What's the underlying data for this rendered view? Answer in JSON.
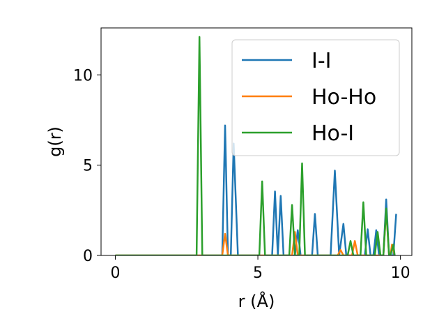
{
  "chart_data": {
    "type": "line",
    "xlabel": "r (Å)",
    "ylabel": "g(r)",
    "xlim": [
      -0.5,
      10.4
    ],
    "ylim": [
      0,
      12.6
    ],
    "xticks": [
      0,
      5,
      10
    ],
    "yticks": [
      0,
      5,
      10
    ],
    "grid": false,
    "legend_position": "top-right",
    "series": [
      {
        "name": "I-I",
        "color": "#1f77b4",
        "points": [
          [
            0,
            0
          ],
          [
            3.0,
            0
          ],
          [
            3.75,
            0
          ],
          [
            3.85,
            7.2
          ],
          [
            3.95,
            0
          ],
          [
            4.05,
            0
          ],
          [
            4.15,
            6.2
          ],
          [
            4.3,
            0
          ],
          [
            5.5,
            0
          ],
          [
            5.6,
            3.55
          ],
          [
            5.7,
            0
          ],
          [
            5.8,
            3.3
          ],
          [
            5.9,
            0
          ],
          [
            6.3,
            0
          ],
          [
            6.4,
            1.4
          ],
          [
            6.5,
            0
          ],
          [
            6.9,
            0
          ],
          [
            7.0,
            2.3
          ],
          [
            7.1,
            0
          ],
          [
            7.55,
            0
          ],
          [
            7.7,
            4.7
          ],
          [
            7.85,
            0
          ],
          [
            8.0,
            1.75
          ],
          [
            8.1,
            0
          ],
          [
            8.75,
            0
          ],
          [
            8.85,
            1.45
          ],
          [
            8.95,
            0
          ],
          [
            9.05,
            0
          ],
          [
            9.15,
            1.4
          ],
          [
            9.25,
            0
          ],
          [
            9.4,
            0
          ],
          [
            9.5,
            3.1
          ],
          [
            9.6,
            0
          ],
          [
            9.75,
            0
          ],
          [
            9.85,
            2.3
          ]
        ]
      },
      {
        "name": "Ho-Ho",
        "color": "#ff7f0e",
        "points": [
          [
            0,
            0
          ],
          [
            3.75,
            0
          ],
          [
            3.85,
            1.2
          ],
          [
            3.95,
            0
          ],
          [
            6.2,
            0
          ],
          [
            6.3,
            1.3
          ],
          [
            6.4,
            0
          ],
          [
            7.8,
            0
          ],
          [
            7.9,
            0.3
          ],
          [
            8.0,
            0
          ],
          [
            8.3,
            0
          ],
          [
            8.4,
            0.8
          ],
          [
            8.5,
            0
          ],
          [
            9.4,
            0
          ],
          [
            9.5,
            2.5
          ],
          [
            9.6,
            0
          ],
          [
            9.65,
            0
          ],
          [
            9.7,
            0.6
          ],
          [
            9.8,
            0
          ]
        ]
      },
      {
        "name": "Ho-I",
        "color": "#2ca02c",
        "points": [
          [
            0,
            0
          ],
          [
            2.85,
            0
          ],
          [
            2.95,
            12.1
          ],
          [
            3.05,
            0
          ],
          [
            5.05,
            0
          ],
          [
            5.15,
            4.1
          ],
          [
            5.25,
            0
          ],
          [
            6.1,
            0
          ],
          [
            6.2,
            2.8
          ],
          [
            6.3,
            0
          ],
          [
            6.45,
            0
          ],
          [
            6.55,
            5.1
          ],
          [
            6.65,
            0
          ],
          [
            8.15,
            0
          ],
          [
            8.25,
            0.8
          ],
          [
            8.35,
            0
          ],
          [
            8.6,
            0
          ],
          [
            8.7,
            2.95
          ],
          [
            8.8,
            0
          ],
          [
            9.1,
            0
          ],
          [
            9.2,
            1.3
          ],
          [
            9.3,
            0
          ],
          [
            9.4,
            0
          ],
          [
            9.5,
            2.6
          ],
          [
            9.6,
            0
          ],
          [
            9.65,
            0
          ],
          [
            9.75,
            0.6
          ],
          [
            9.8,
            0
          ]
        ]
      }
    ]
  }
}
